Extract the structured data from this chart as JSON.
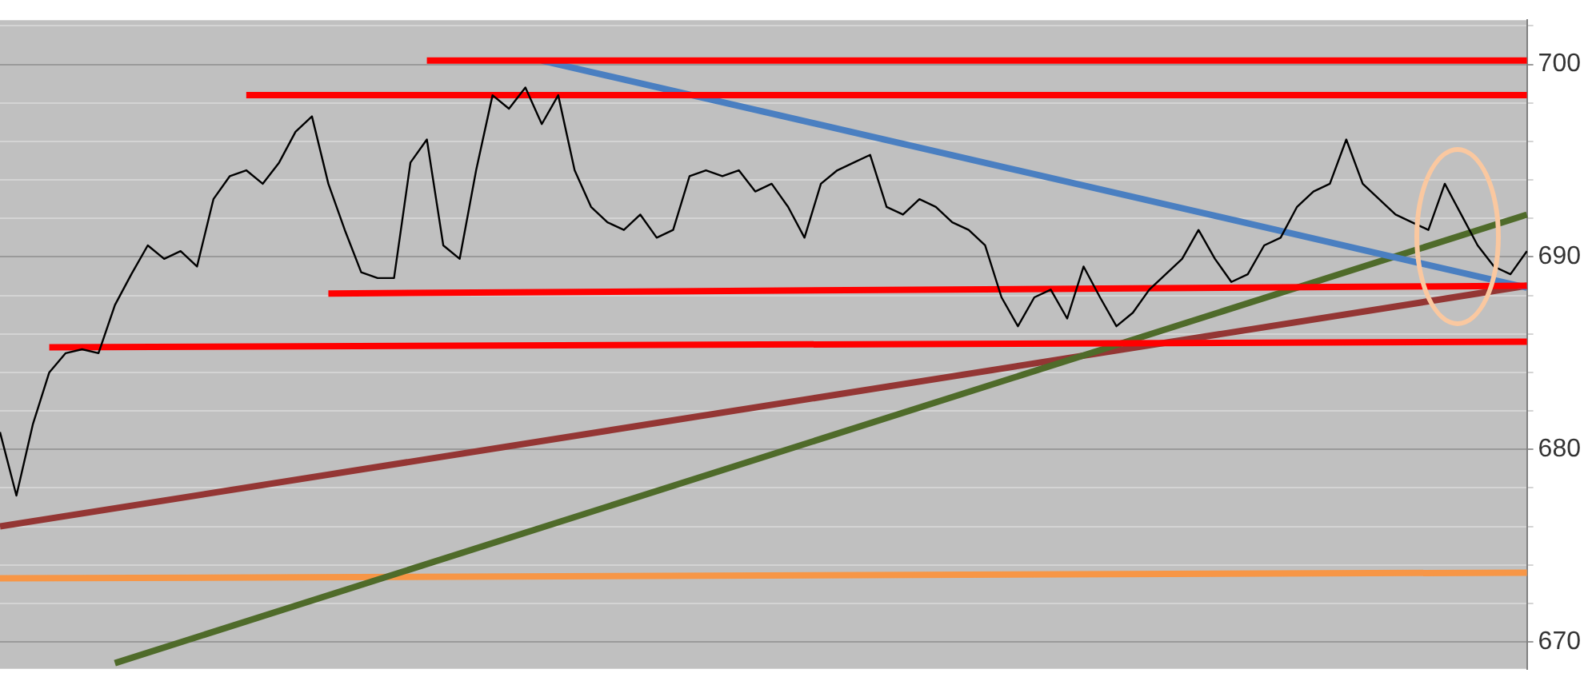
{
  "chart_data": {
    "type": "line",
    "categories": [
      null,
      null,
      null,
      null,
      null,
      null,
      null,
      null,
      null,
      null,
      null,
      null,
      null,
      null,
      null,
      null,
      null,
      null,
      null,
      null,
      null,
      null,
      null,
      null,
      null,
      null,
      null,
      null,
      null,
      null,
      null,
      null,
      null,
      null,
      null,
      null,
      null,
      null,
      null,
      null,
      null,
      null,
      null,
      null,
      null,
      null,
      null,
      null,
      null,
      null,
      null,
      null,
      null,
      null,
      null,
      null,
      null,
      null,
      null,
      null,
      null,
      null,
      null,
      null,
      null,
      null,
      null,
      null,
      null,
      null,
      null,
      null,
      null,
      null,
      null,
      null,
      null,
      null,
      null,
      null,
      null,
      null,
      null,
      null,
      null,
      null,
      null,
      null,
      null,
      null,
      null,
      null,
      null,
      null
    ],
    "series": [
      {
        "color": "#000000",
        "values": [
          680.9,
          677.6,
          681.3,
          684.0,
          685.0,
          685.2,
          685.0,
          687.5,
          689.1,
          690.6,
          689.9,
          690.3,
          689.5,
          693.0,
          694.2,
          694.5,
          693.8,
          694.9,
          696.5,
          697.3,
          693.8,
          691.4,
          689.2,
          688.9,
          688.9,
          694.9,
          696.1,
          690.6,
          689.9,
          694.5,
          698.4,
          697.7,
          698.8,
          696.9,
          698.4,
          694.5,
          692.6,
          691.8,
          691.4,
          692.2,
          691.0,
          691.4,
          694.2,
          694.5,
          694.2,
          694.5,
          693.4,
          693.8,
          692.6,
          691.0,
          693.8,
          694.5,
          694.9,
          695.3,
          692.6,
          692.2,
          693.0,
          692.6,
          691.8,
          691.4,
          690.6,
          687.9,
          686.4,
          687.9,
          688.3,
          686.8,
          689.5,
          687.9,
          686.4,
          687.1,
          688.3,
          689.1,
          689.9,
          691.4,
          689.9,
          688.7,
          689.1,
          690.6,
          691.0,
          692.6,
          693.4,
          693.8,
          696.1,
          693.8,
          693.0,
          692.2,
          691.8,
          691.4,
          693.8,
          692.2,
          690.6,
          689.5,
          689.1,
          690.3
        ]
      },
      {
        "color": "#ff0000",
        "values": [
          null,
          null,
          null,
          null,
          null,
          null,
          null,
          null,
          null,
          null,
          null,
          null,
          null,
          null,
          null,
          null,
          null,
          null,
          null,
          null,
          null,
          null,
          null,
          null,
          null,
          null,
          700.2,
          null,
          null,
          null,
          null,
          null,
          null,
          null,
          null,
          null,
          null,
          null,
          null,
          null,
          null,
          null,
          null,
          null,
          null,
          null,
          null,
          null,
          null,
          null,
          null,
          null,
          null,
          null,
          null,
          null,
          null,
          null,
          null,
          null,
          null,
          null,
          null,
          null,
          null,
          null,
          null,
          null,
          null,
          null,
          null,
          null,
          null,
          null,
          null,
          null,
          null,
          null,
          null,
          null,
          null,
          null,
          null,
          null,
          null,
          null,
          null,
          null,
          null,
          null,
          null,
          null,
          null,
          700.2
        ]
      },
      {
        "color": "#ff0000",
        "values": [
          null,
          null,
          null,
          null,
          null,
          null,
          null,
          null,
          null,
          null,
          null,
          null,
          null,
          null,
          null,
          698.4,
          null,
          null,
          null,
          null,
          null,
          null,
          null,
          null,
          null,
          null,
          null,
          null,
          null,
          null,
          null,
          null,
          null,
          null,
          null,
          null,
          null,
          null,
          null,
          null,
          null,
          null,
          null,
          null,
          null,
          null,
          null,
          null,
          null,
          null,
          null,
          null,
          null,
          null,
          null,
          null,
          null,
          null,
          null,
          null,
          null,
          null,
          null,
          null,
          null,
          null,
          null,
          null,
          null,
          null,
          null,
          null,
          null,
          null,
          null,
          null,
          null,
          null,
          null,
          null,
          null,
          null,
          null,
          null,
          null,
          null,
          null,
          null,
          null,
          null,
          null,
          null,
          null,
          698.4
        ]
      },
      {
        "color": "#ff0000",
        "values": [
          null,
          null,
          null,
          null,
          null,
          null,
          null,
          null,
          null,
          null,
          null,
          null,
          null,
          null,
          null,
          null,
          null,
          null,
          null,
          null,
          688.1,
          null,
          null,
          null,
          null,
          null,
          null,
          null,
          null,
          null,
          null,
          null,
          null,
          null,
          null,
          null,
          null,
          null,
          null,
          null,
          null,
          null,
          null,
          null,
          null,
          null,
          null,
          null,
          null,
          null,
          null,
          null,
          null,
          null,
          null,
          null,
          null,
          null,
          null,
          null,
          null,
          null,
          null,
          null,
          null,
          null,
          null,
          null,
          null,
          null,
          null,
          null,
          null,
          null,
          null,
          null,
          null,
          null,
          null,
          null,
          null,
          null,
          null,
          null,
          null,
          null,
          null,
          null,
          null,
          null,
          null,
          null,
          null,
          688.5
        ]
      },
      {
        "color": "#ff0000",
        "values": [
          null,
          null,
          null,
          685.3,
          null,
          null,
          null,
          null,
          null,
          null,
          null,
          null,
          null,
          null,
          null,
          null,
          null,
          null,
          null,
          null,
          null,
          null,
          null,
          null,
          null,
          null,
          null,
          null,
          null,
          null,
          null,
          null,
          null,
          null,
          null,
          null,
          null,
          null,
          null,
          null,
          null,
          null,
          null,
          null,
          null,
          null,
          null,
          null,
          null,
          null,
          null,
          null,
          null,
          null,
          null,
          null,
          null,
          null,
          null,
          null,
          null,
          null,
          null,
          null,
          null,
          null,
          null,
          null,
          null,
          null,
          null,
          null,
          null,
          null,
          null,
          null,
          null,
          null,
          null,
          null,
          null,
          null,
          null,
          null,
          null,
          null,
          null,
          null,
          null,
          null,
          null,
          null,
          null,
          685.6
        ]
      },
      {
        "color": "#4a7fc1",
        "values": [
          null,
          null,
          null,
          null,
          null,
          null,
          null,
          null,
          null,
          null,
          null,
          null,
          null,
          null,
          null,
          null,
          null,
          null,
          null,
          null,
          null,
          null,
          null,
          null,
          null,
          null,
          null,
          null,
          null,
          null,
          null,
          null,
          null,
          700.2,
          null,
          null,
          null,
          null,
          null,
          null,
          null,
          null,
          null,
          null,
          null,
          null,
          null,
          null,
          null,
          null,
          null,
          null,
          null,
          null,
          null,
          null,
          null,
          null,
          null,
          null,
          null,
          null,
          null,
          null,
          null,
          null,
          null,
          null,
          null,
          null,
          null,
          null,
          null,
          null,
          null,
          null,
          null,
          null,
          null,
          null,
          null,
          null,
          null,
          null,
          null,
          null,
          null,
          null,
          null,
          null,
          null,
          null,
          null,
          688.4
        ]
      },
      {
        "color": "#4f6b2a",
        "values": [
          null,
          null,
          null,
          null,
          null,
          null,
          null,
          668.9,
          null,
          null,
          null,
          null,
          null,
          null,
          null,
          null,
          null,
          null,
          null,
          null,
          null,
          null,
          null,
          null,
          null,
          null,
          null,
          null,
          null,
          null,
          null,
          null,
          null,
          null,
          null,
          null,
          null,
          null,
          null,
          null,
          null,
          null,
          null,
          null,
          null,
          null,
          null,
          null,
          null,
          null,
          null,
          null,
          null,
          null,
          null,
          null,
          null,
          null,
          null,
          null,
          null,
          null,
          null,
          null,
          null,
          null,
          null,
          null,
          null,
          null,
          null,
          null,
          null,
          null,
          null,
          null,
          null,
          null,
          null,
          null,
          null,
          null,
          null,
          null,
          null,
          null,
          null,
          null,
          null,
          null,
          null,
          null,
          null,
          692.2
        ]
      },
      {
        "color": "#943634",
        "values": [
          676.0,
          null,
          null,
          null,
          null,
          null,
          null,
          null,
          null,
          null,
          null,
          null,
          null,
          null,
          null,
          null,
          null,
          null,
          null,
          null,
          null,
          null,
          null,
          null,
          null,
          null,
          null,
          null,
          null,
          null,
          null,
          null,
          null,
          null,
          null,
          null,
          null,
          null,
          null,
          null,
          null,
          null,
          null,
          null,
          null,
          null,
          null,
          null,
          null,
          null,
          null,
          null,
          null,
          null,
          null,
          null,
          null,
          null,
          null,
          null,
          null,
          null,
          null,
          null,
          null,
          null,
          null,
          null,
          null,
          null,
          null,
          null,
          null,
          null,
          null,
          null,
          null,
          null,
          null,
          null,
          null,
          null,
          null,
          null,
          null,
          null,
          null,
          null,
          null,
          null,
          null,
          null,
          null,
          688.5
        ]
      },
      {
        "color": "#f79646",
        "values": [
          673.3,
          null,
          null,
          null,
          null,
          null,
          null,
          null,
          null,
          null,
          null,
          null,
          null,
          null,
          null,
          null,
          null,
          null,
          null,
          null,
          null,
          null,
          null,
          null,
          null,
          null,
          null,
          null,
          null,
          null,
          null,
          null,
          null,
          null,
          null,
          null,
          null,
          null,
          null,
          null,
          null,
          null,
          null,
          null,
          null,
          null,
          null,
          null,
          null,
          null,
          null,
          null,
          null,
          null,
          null,
          null,
          null,
          null,
          null,
          null,
          null,
          null,
          null,
          null,
          null,
          null,
          null,
          null,
          null,
          null,
          null,
          null,
          null,
          null,
          null,
          null,
          null,
          null,
          null,
          null,
          null,
          null,
          null,
          null,
          null,
          null,
          null,
          null,
          null,
          null,
          null,
          null,
          null,
          673.6
        ]
      }
    ],
    "ylim": [
      668.6,
      702.3
    ],
    "yticks": [
      670,
      {
        "value": 672,
        "label": null
      },
      {
        "value": 674,
        "label": null
      },
      {
        "value": 676,
        "label": null
      },
      {
        "value": 678,
        "label": null
      },
      680,
      {
        "value": 682,
        "label": null
      },
      {
        "value": 684,
        "label": null
      },
      {
        "value": 686,
        "label": null
      },
      {
        "value": 688,
        "label": null
      },
      690,
      {
        "value": 692,
        "label": null
      },
      {
        "value": 694,
        "label": null
      },
      {
        "value": 696,
        "label": null
      },
      {
        "value": 698,
        "label": null
      },
      700,
      {
        "value": 702,
        "label": null
      }
    ],
    "grid": "y",
    "legend": false,
    "tick_labels": "y",
    "marker": "none",
    "line_style": "solid"
  }
}
